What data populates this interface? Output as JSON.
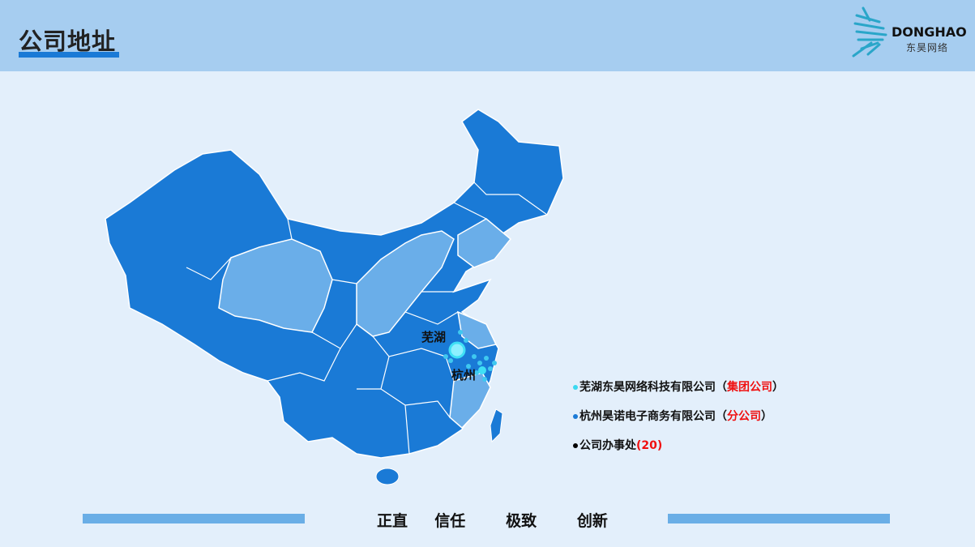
{
  "header": {
    "title": "公司地址",
    "logo_en": "DONGHAO",
    "logo_cn": "东昊网络"
  },
  "map": {
    "cities": [
      {
        "name": "芜湖"
      },
      {
        "name": "杭州"
      }
    ],
    "colors": {
      "province": "#1a7ad6",
      "highlight": "#6aaee9",
      "border": "#ffffff",
      "marker": "#3fe0f5"
    }
  },
  "legend": [
    {
      "text": "芜湖东昊网络科技有限公司（",
      "tag": "集团公司",
      "close": "）",
      "dot_color": "#3ad9f0"
    },
    {
      "text": "杭州昊诺电子商务有限公司（",
      "tag": "分公司",
      "close": "）",
      "dot_color": "#1a7ad6"
    },
    {
      "text": "公司办事处",
      "tag": "(20)",
      "close": "",
      "dot_color": "#000000"
    }
  ],
  "footer": {
    "slogan": "正直  信任   极致   创新"
  }
}
